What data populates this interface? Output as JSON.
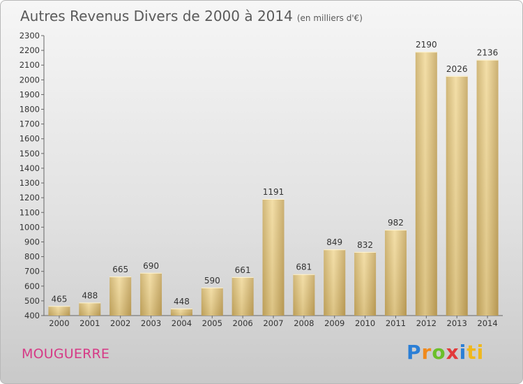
{
  "header": {
    "title": "Autres Revenus Divers de 2000 à 2014",
    "unit": "(en milliers d'€)"
  },
  "footer": {
    "commune": "MOUGUERRE",
    "brand_letters": [
      "P",
      "r",
      "o",
      "x",
      "i",
      "ti"
    ]
  },
  "chart_data": {
    "type": "bar",
    "title": "Autres Revenus Divers de 2000 à 2014",
    "subtitle": "(en milliers d'€)",
    "categories": [
      "2000",
      "2001",
      "2002",
      "2003",
      "2004",
      "2005",
      "2006",
      "2007",
      "2008",
      "2009",
      "2010",
      "2011",
      "2012",
      "2013",
      "2014"
    ],
    "values": [
      465,
      488,
      665,
      690,
      448,
      590,
      661,
      1191,
      681,
      849,
      832,
      982,
      2190,
      2026,
      2136
    ],
    "ylim": [
      400,
      2300
    ],
    "ytick_step": 100,
    "grid": false,
    "bar_color": "#e9cf85"
  }
}
